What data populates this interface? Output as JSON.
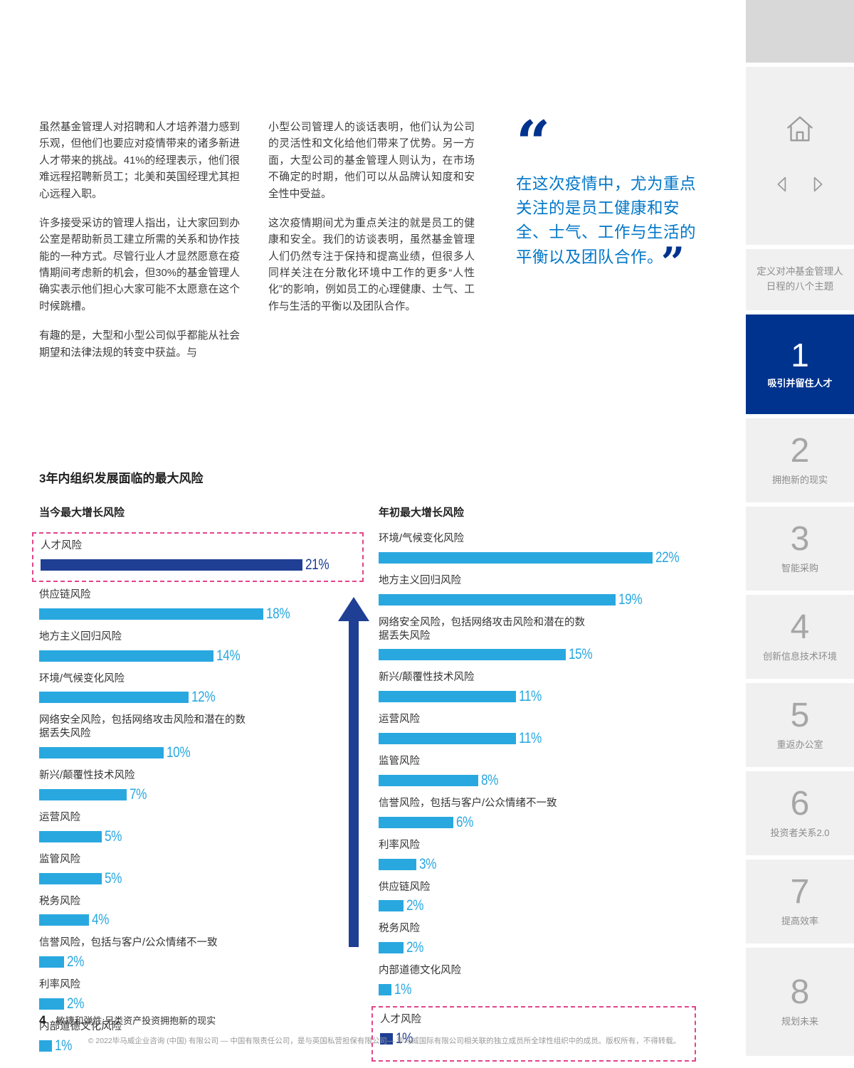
{
  "article": {
    "col1": [
      "虽然基金管理人对招聘和人才培养潜力感到乐观，但他们也要应对疫情带来的诸多新进人才带来的挑战。41%的经理表示，他们很难远程招聘新员工；北美和英国经理尤其担心远程入职。",
      "许多接受采访的管理人指出，让大家回到办公室是帮助新员工建立所需的关系和协作技能的一种方式。尽管行业人才显然愿意在疫情期间考虑新的机会，但30%的基金管理人确实表示他们担心大家可能不太愿意在这个时候跳槽。",
      "有趣的是，大型和小型公司似乎都能从社会期望和法律法规的转变中获益。与"
    ],
    "col2": [
      "小型公司管理人的谈话表明，他们认为公司的灵活性和文化给他们带来了优势。另一方面，大型公司的基金管理人则认为，在市场不确定的时期，他们可以从品牌认知度和安全性中受益。",
      "这次疫情期间尤为重点关注的就是员工的健康和安全。我们的访谈表明，虽然基金管理人们仍然专注于保持和提高业绩，但很多人同样关注在分散化环境中工作的更多“人性化”的影响，例如员工的心理健康、士气、工作与生活的平衡以及团队合作。"
    ],
    "quote": {
      "open": "“",
      "text": "在这次疫情中，尤为重点关注的是员工健康和安全、士气、工作与生活的平衡以及团队合作。",
      "close": "”"
    }
  },
  "charts_section": {
    "title": "3年内组织发展面临的最大风险"
  },
  "chart_data": [
    {
      "type": "bar",
      "orientation": "horizontal",
      "title": "当今最大增长风险",
      "unit": "%",
      "xlim": [
        0,
        25
      ],
      "items": [
        {
          "label": "人才风险",
          "value": 21,
          "highlight": true
        },
        {
          "label": "供应链风险",
          "value": 18
        },
        {
          "label": "地方主义回归风险",
          "value": 14
        },
        {
          "label": "环境/气候变化风险",
          "value": 12
        },
        {
          "label": "网络安全风险，包括网络攻击风险和潜在的数据丢失风险",
          "value": 10
        },
        {
          "label": "新兴/颠覆性技术风险",
          "value": 7
        },
        {
          "label": "运营风险",
          "value": 5
        },
        {
          "label": "监管风险",
          "value": 5
        },
        {
          "label": "税务风险",
          "value": 4
        },
        {
          "label": "信誉风险，包括与客户/公众情绪不一致",
          "value": 2
        },
        {
          "label": "利率风险",
          "value": 2
        },
        {
          "label": "内部道德文化风险",
          "value": 1
        }
      ]
    },
    {
      "type": "bar",
      "orientation": "horizontal",
      "title": "年初最大增长风险",
      "unit": "%",
      "xlim": [
        0,
        25
      ],
      "items": [
        {
          "label": "环境/气候变化风险",
          "value": 22
        },
        {
          "label": "地方主义回归风险",
          "value": 19
        },
        {
          "label": "网络安全风险，包括网络攻击风险和潜在的数据丢失风险",
          "value": 15
        },
        {
          "label": "新兴/颠覆性技术风险",
          "value": 11
        },
        {
          "label": "运营风险",
          "value": 11
        },
        {
          "label": "监管风险",
          "value": 8
        },
        {
          "label": "信誉风险，包括与客户/公众情绪不一致",
          "value": 6
        },
        {
          "label": "利率风险",
          "value": 3
        },
        {
          "label": "供应链风险",
          "value": 2
        },
        {
          "label": "税务风险",
          "value": 2
        },
        {
          "label": "内部道德文化风险",
          "value": 1
        },
        {
          "label": "人才风险",
          "value": 1,
          "highlight": true
        }
      ]
    }
  ],
  "sidebar": {
    "intro": "定义对冲基金管理人日程的八个主题",
    "items": [
      {
        "num": "1",
        "label": "吸引并留住人才",
        "active": true
      },
      {
        "num": "2",
        "label": "拥抱新的现实"
      },
      {
        "num": "3",
        "label": "智能采购"
      },
      {
        "num": "4",
        "label": "创新信息技术环境"
      },
      {
        "num": "5",
        "label": "重返办公室"
      },
      {
        "num": "6",
        "label": "投资者关系2.0"
      },
      {
        "num": "7",
        "label": "提高效率"
      },
      {
        "num": "8",
        "label": "规划未来"
      }
    ]
  },
  "footer": {
    "page_num": "4",
    "doc_title": "敏捷和弹性:另类资产投资拥抱新的现实",
    "copyright": "© 2022毕马威企业咨询 (中国) 有限公司 — 中国有限责任公司，是与英国私营担保有限公司— 毕马威国际有限公司相关联的独立成员所全球性组织中的成员。版权所有，不得转载。"
  },
  "colors": {
    "bar_light_blue": "#29A8E0",
    "bar_dark_blue": "#1F3F95",
    "kpmg_blue": "#00338D",
    "quote_blue": "#0076C8",
    "highlight_pink": "#E1458A"
  }
}
